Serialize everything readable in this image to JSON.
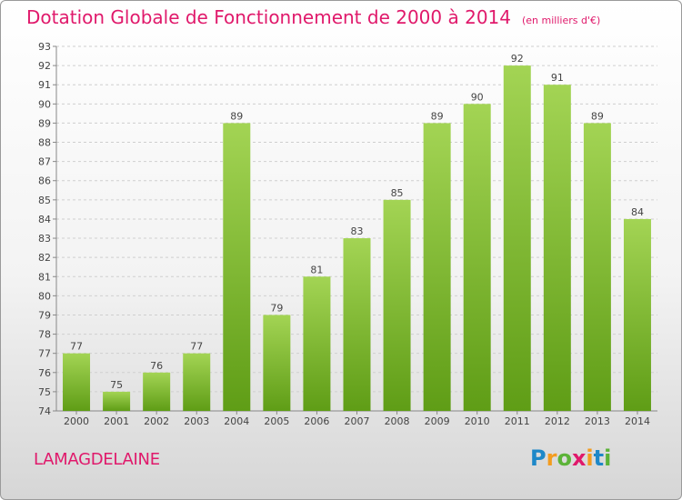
{
  "header": {
    "title": "Dotation Globale de Fonctionnement de 2000 à 2014",
    "unit": "(en milliers d'€)"
  },
  "footer": {
    "commune": "LAMAGDELAINE",
    "logo_letters": [
      {
        "ch": "P",
        "color": "#1e88c8"
      },
      {
        "ch": "r",
        "color": "#f39c1f"
      },
      {
        "ch": "o",
        "color": "#5cb338"
      },
      {
        "ch": "x",
        "color": "#e0196b"
      },
      {
        "ch": "i",
        "color": "#f39c1f"
      },
      {
        "ch": "t",
        "color": "#1e88c8"
      },
      {
        "ch": "i",
        "color": "#5cb338"
      }
    ]
  },
  "colors": {
    "bar_top": "#a3d454",
    "bar_bottom": "#5f9d16",
    "grid": "#cfcfcf",
    "axis": "#888888",
    "text": "#444444"
  },
  "chart_data": {
    "type": "bar",
    "categories": [
      "2000",
      "2001",
      "2002",
      "2003",
      "2004",
      "2005",
      "2006",
      "2007",
      "2008",
      "2009",
      "2010",
      "2011",
      "2012",
      "2013",
      "2014"
    ],
    "values": [
      77,
      75,
      76,
      77,
      89,
      79,
      81,
      83,
      85,
      89,
      90,
      92,
      91,
      89,
      84
    ],
    "ylim": [
      74,
      93
    ],
    "yticks": [
      74,
      75,
      76,
      77,
      78,
      79,
      80,
      81,
      82,
      83,
      84,
      85,
      86,
      87,
      88,
      89,
      90,
      91,
      92,
      93
    ],
    "grid": true,
    "data_labels": true
  }
}
